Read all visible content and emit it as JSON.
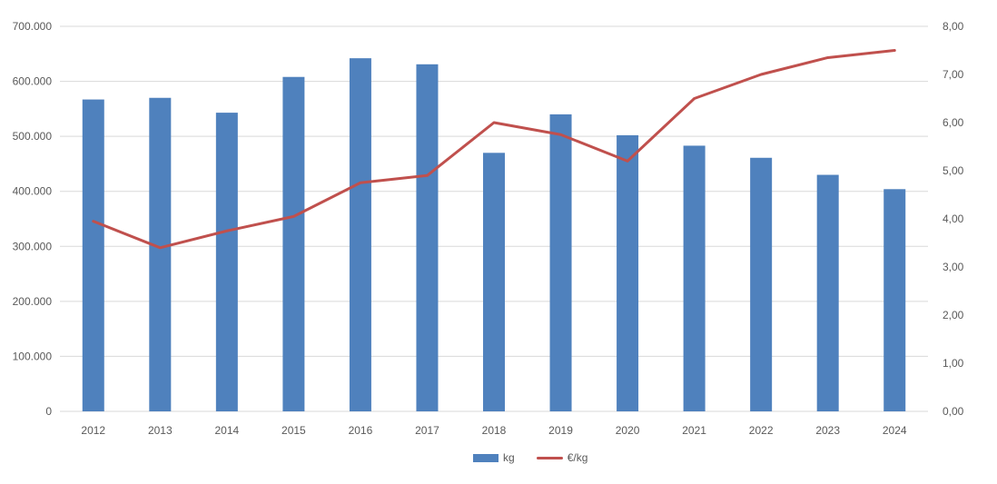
{
  "chart_data": {
    "type": "bar",
    "subtype": "bar-line-combo",
    "title": "",
    "categories": [
      "2012",
      "2013",
      "2014",
      "2015",
      "2016",
      "2017",
      "2018",
      "2019",
      "2020",
      "2021",
      "2022",
      "2023",
      "2024"
    ],
    "series": [
      {
        "name": "kg",
        "type": "bar",
        "axis": "left",
        "color": "#4f81bd",
        "values": [
          567000,
          570000,
          543000,
          608000,
          642000,
          631000,
          470000,
          540000,
          502000,
          483000,
          461000,
          430000,
          404000
        ]
      },
      {
        "name": "€/kg",
        "type": "line",
        "axis": "right",
        "color": "#c0504d",
        "values": [
          3.95,
          3.4,
          3.75,
          4.05,
          4.75,
          4.9,
          6.0,
          5.75,
          5.2,
          6.5,
          7.0,
          7.35,
          7.5
        ]
      }
    ],
    "left_axis": {
      "min": 0,
      "max": 700000,
      "step": 100000,
      "tick_labels": [
        "0",
        "100.000",
        "200.000",
        "300.000",
        "400.000",
        "500.000",
        "600.000",
        "700.000"
      ]
    },
    "right_axis": {
      "min": 0,
      "max": 8,
      "step": 1,
      "tick_labels": [
        "0,00",
        "1,00",
        "2,00",
        "3,00",
        "4,00",
        "5,00",
        "6,00",
        "7,00",
        "8,00"
      ]
    },
    "legend": {
      "position": "bottom-center",
      "items": [
        {
          "label": "kg",
          "swatch": "bar-swatch"
        },
        {
          "label": "€/kg",
          "swatch": "line-swatch"
        }
      ]
    },
    "grid": true,
    "gridline_color": "#d9d9d9",
    "text_color": "#595959",
    "background": "#ffffff"
  }
}
